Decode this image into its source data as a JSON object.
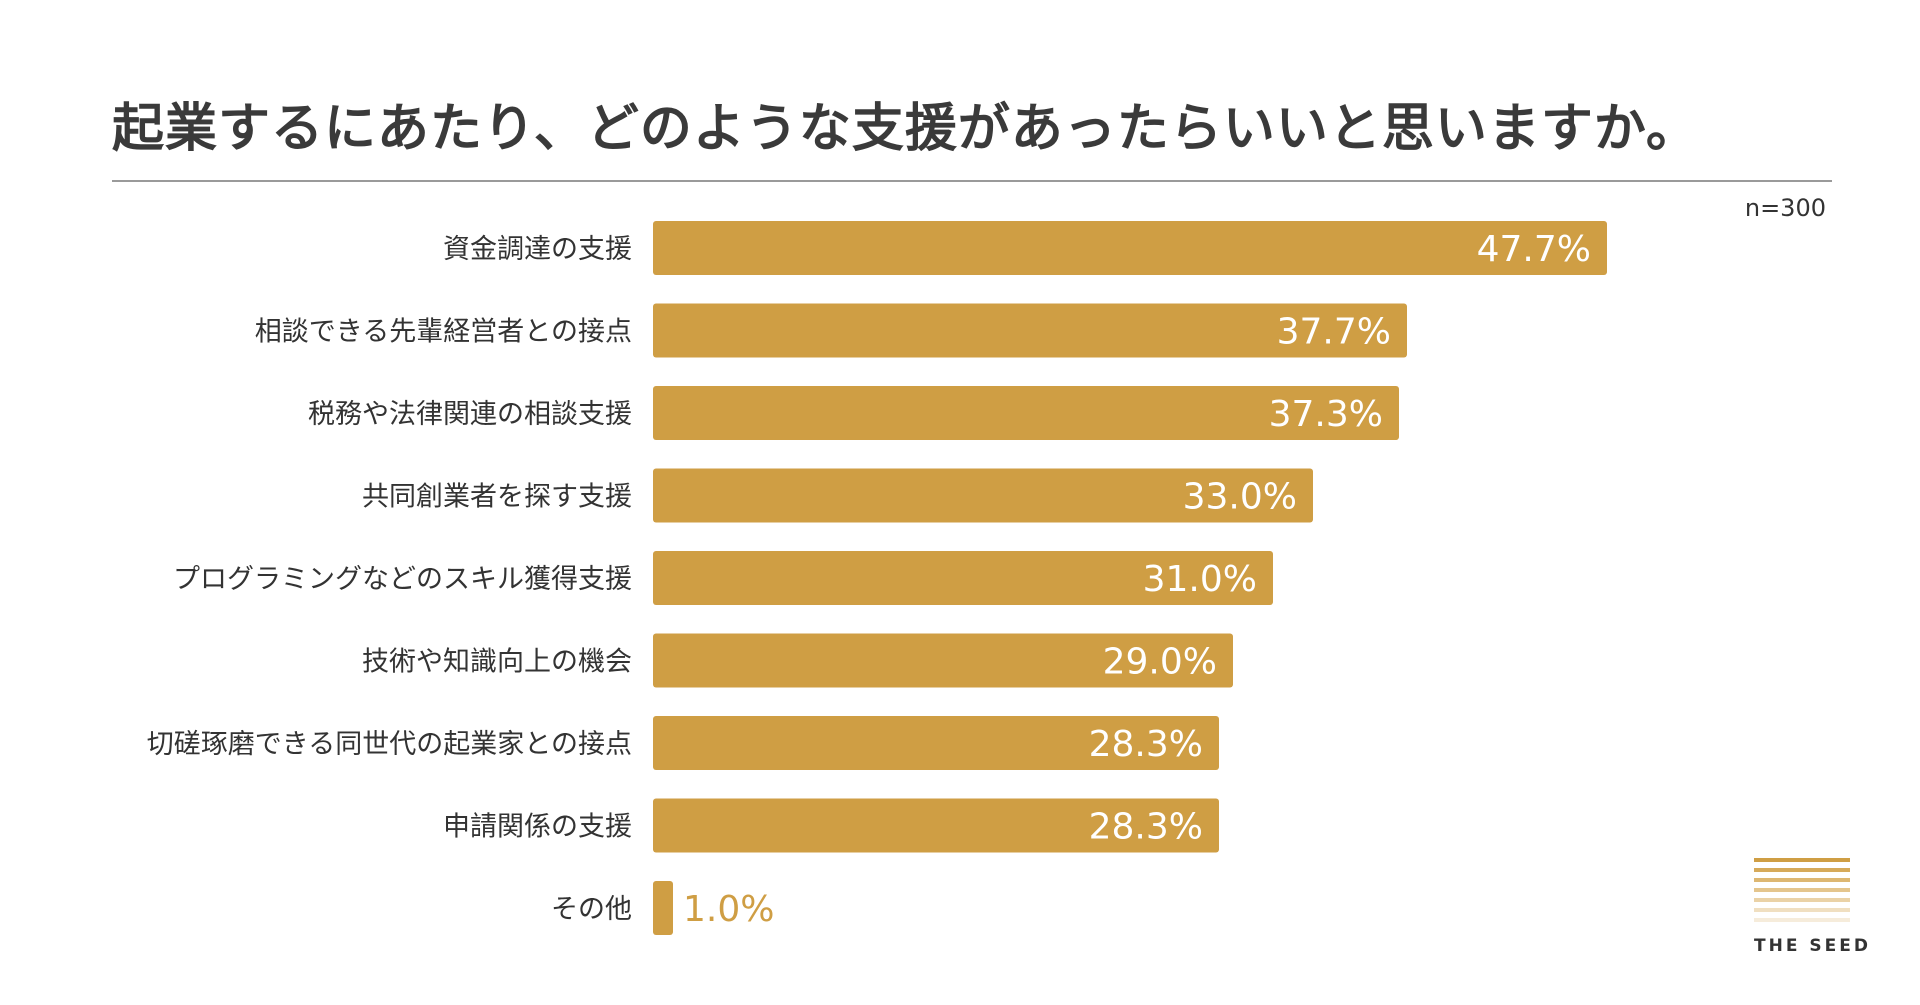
{
  "chart_data": {
    "type": "bar",
    "orientation": "horizontal",
    "title": "起業するにあたり、どのような支援があったらいいと思いますか。",
    "sample_size_label": "n=300",
    "categories": [
      "資金調達の支援",
      "相談できる先輩経営者との接点",
      "税務や法律関連の相談支援",
      "共同創業者を探す支援",
      "プログラミングなどのスキル獲得支援",
      "技術や知識向上の機会",
      "切磋琢磨できる同世代の起業家との接点",
      "申請関係の支援",
      "その他"
    ],
    "values": [
      47.7,
      37.7,
      37.3,
      33.0,
      31.0,
      29.0,
      28.3,
      28.3,
      1.0
    ],
    "value_labels": [
      "47.7%",
      "37.7%",
      "37.3%",
      "33.0%",
      "31.0%",
      "29.0%",
      "28.3%",
      "28.3%",
      "1.0%"
    ],
    "unit": "%",
    "xlim": [
      0,
      50
    ],
    "xlabel": "",
    "ylabel": "",
    "grid": false,
    "bar_color": "#cf9e44",
    "label_color_inside": "#ffffff",
    "label_color_outside": "#cf9e44"
  },
  "logo": {
    "text": "THE SEED",
    "line_colors": [
      "#cf9e44",
      "#d6aa5a",
      "#ddb772",
      "#e4c58d",
      "#ead2a7",
      "#f0dfc1",
      "#f6ecdb"
    ]
  }
}
